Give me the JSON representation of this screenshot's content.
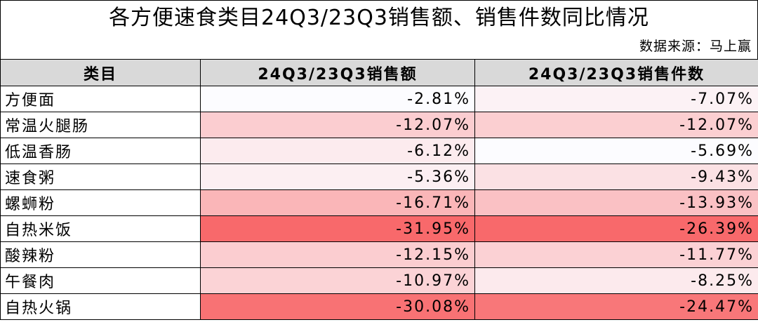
{
  "title": "各方便速食类目24Q3/23Q3销售额、销售件数同比情况",
  "source": "数据来源：马上赢",
  "table": {
    "header": [
      "类目",
      "24Q3/23Q3销售额",
      "24Q3/23Q3销售件数"
    ],
    "rows": [
      [
        "方便面",
        "-2.81%",
        "-7.07%"
      ],
      [
        "常温火腿肠",
        "-12.07%",
        "-12.07%"
      ],
      [
        "低温香肠",
        "-6.12%",
        "-5.69%"
      ],
      [
        "速食粥",
        "-5.36%",
        "-9.43%"
      ],
      [
        "螺蛳粉",
        "-16.71%",
        "-13.93%"
      ],
      [
        "自热米饭",
        "-31.95%",
        "-26.39%"
      ],
      [
        "酸辣粉",
        "-12.15%",
        "-11.77%"
      ],
      [
        "午餐肉",
        "-10.97%",
        "-8.25%"
      ],
      [
        "自热火锅",
        "-30.08%",
        "-24.47%"
      ]
    ]
  }
}
